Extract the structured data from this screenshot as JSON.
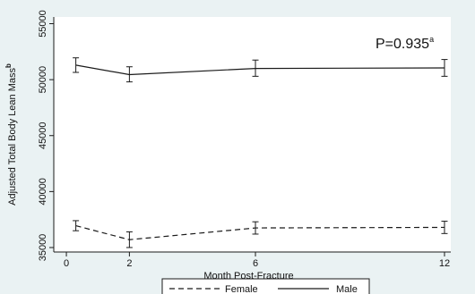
{
  "chart_data": {
    "type": "line",
    "x": [
      0.3,
      2,
      6,
      12
    ],
    "xticks": [
      0,
      2,
      6,
      12
    ],
    "yticks": [
      35000,
      40000,
      45000,
      50000,
      55000
    ],
    "xlabel": "Month Post-Fracture",
    "ylabel": "Adjusted Total Body Lean Mass",
    "ylabel_superscript": "b",
    "xlim": [
      -0.4,
      12.2
    ],
    "ylim": [
      34600,
      55600
    ],
    "grid": false,
    "annotation": {
      "text": "P=0.935",
      "superscript": "a"
    },
    "series": [
      {
        "name": "Female",
        "style": "dashed",
        "values": [
          36950,
          35700,
          36750,
          36800
        ],
        "ci_low": [
          36500,
          35000,
          36200,
          36250
        ],
        "ci_high": [
          37400,
          36400,
          37300,
          37350
        ]
      },
      {
        "name": "Male",
        "style": "solid",
        "values": [
          51300,
          50450,
          51000,
          51050
        ],
        "ci_low": [
          50650,
          49800,
          50300,
          50300
        ],
        "ci_high": [
          51950,
          51150,
          51750,
          51800
        ]
      }
    ],
    "legend_position": "bottom-center",
    "colors": {
      "background": "#ffffff",
      "plot_area": "#ffffff",
      "frame": "#eaf2f3",
      "line": "#1a1a1a"
    }
  }
}
